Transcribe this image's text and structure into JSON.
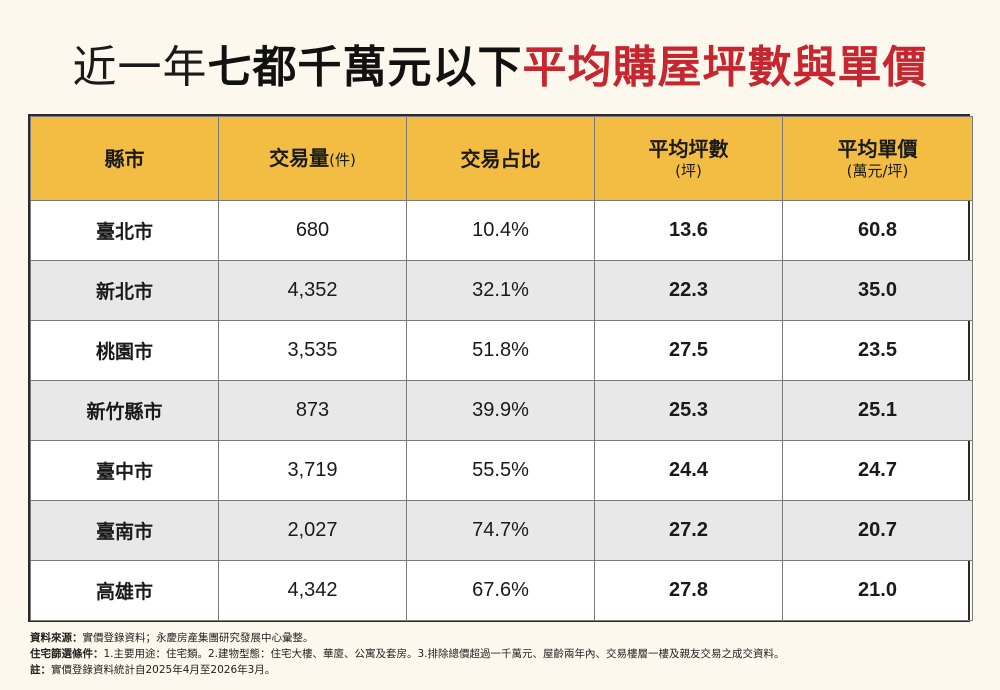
{
  "title": {
    "part1": "近一年",
    "part2": "七都千萬元以下",
    "part3": "平均購屋坪數與單價"
  },
  "table": {
    "headers": {
      "city": "縣市",
      "volume": "交易量",
      "volume_unit": "(件)",
      "share": "交易占比",
      "avg_area": "平均坪數",
      "avg_area_unit": "(坪)",
      "avg_price": "平均單價",
      "avg_price_unit": "(萬元/坪)"
    },
    "rows": [
      {
        "city": "臺北市",
        "volume": "680",
        "share": "10.4%",
        "avg_area": "13.6",
        "avg_price": "60.8"
      },
      {
        "city": "新北市",
        "volume": "4,352",
        "share": "32.1%",
        "avg_area": "22.3",
        "avg_price": "35.0"
      },
      {
        "city": "桃園市",
        "volume": "3,535",
        "share": "51.8%",
        "avg_area": "27.5",
        "avg_price": "23.5"
      },
      {
        "city": "新竹縣市",
        "volume": "873",
        "share": "39.9%",
        "avg_area": "25.3",
        "avg_price": "25.1"
      },
      {
        "city": "臺中市",
        "volume": "3,719",
        "share": "55.5%",
        "avg_area": "24.4",
        "avg_price": "24.7"
      },
      {
        "city": "臺南市",
        "volume": "2,027",
        "share": "74.7%",
        "avg_area": "27.2",
        "avg_price": "20.7"
      },
      {
        "city": "高雄市",
        "volume": "4,342",
        "share": "67.6%",
        "avg_area": "27.8",
        "avg_price": "21.0"
      }
    ]
  },
  "notes": {
    "source_label": "資料來源：",
    "source_text": "實價登錄資料；永慶房產集團研究發展中心彙整。",
    "filter_label": "住宅篩選條件：",
    "filter_text": "1.主要用途：住宅類。2.建物型態：住宅大樓、華廈、公寓及套房。3.排除總價超過一千萬元、屋齡兩年內、交易樓層一樓及親友交易之成交資料。",
    "note_label": "註：",
    "note_text": "實價登錄資料統計自2025年4月至2026年3月。"
  },
  "colors": {
    "background": "#fdf8ed",
    "header_fill": "#f2bd42",
    "title_accent": "#c62630",
    "alt_row": "#e8e8e8"
  }
}
